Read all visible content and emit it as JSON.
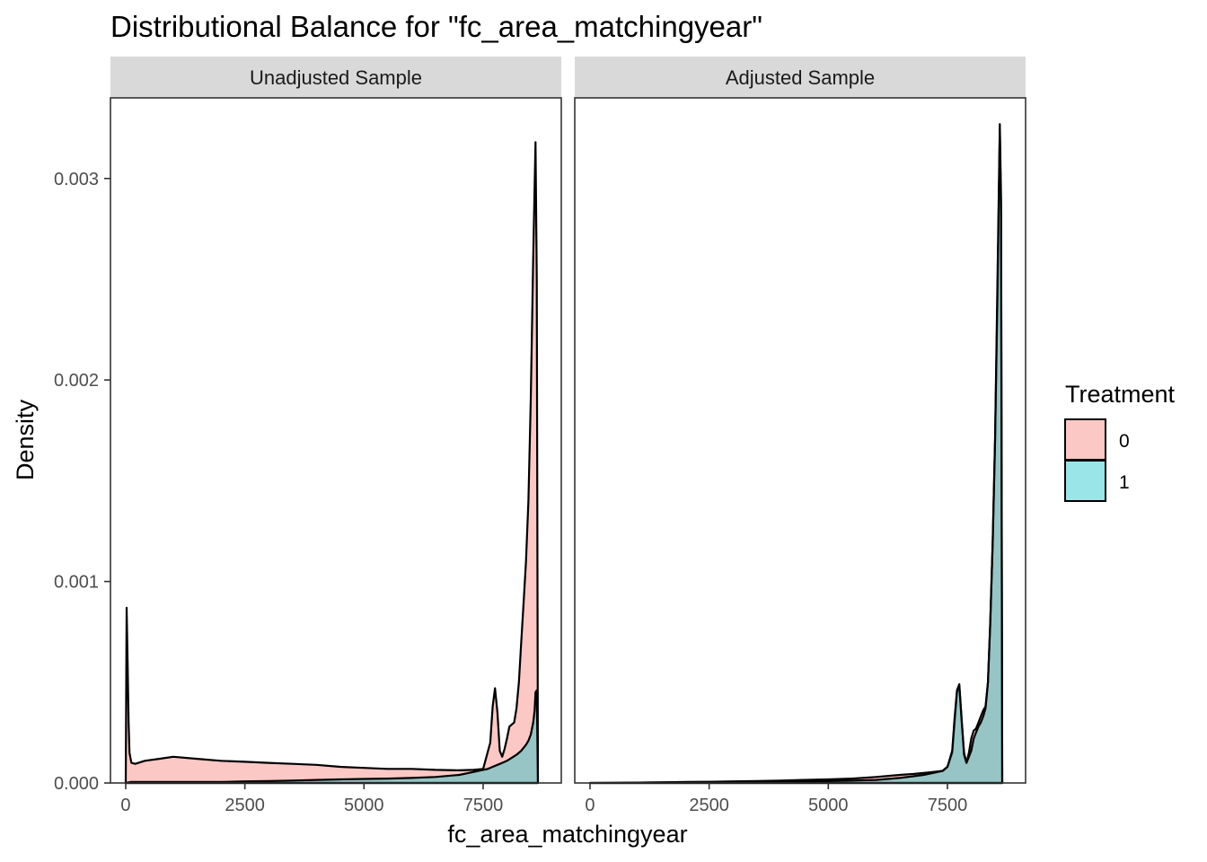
{
  "chart_data": {
    "type": "area",
    "title": "Distributional Balance for \"fc_area_matchingyear\"",
    "xlabel": "fc_area_matchingyear",
    "ylabel": "Density",
    "xlim": [
      -320,
      9140
    ],
    "ylim": [
      0,
      0.0034
    ],
    "x_ticks": [
      0,
      2500,
      5000,
      7500
    ],
    "x_tick_labels": [
      "0",
      "2500",
      "5000",
      "7500"
    ],
    "y_ticks": [
      0,
      0.001,
      0.002,
      0.003
    ],
    "y_tick_labels": [
      "0.000",
      "0.001",
      "0.002",
      "0.003"
    ],
    "legend": {
      "title": "Treatment",
      "position": "right",
      "entries": [
        {
          "label": "0",
          "color": "#F8766D"
        },
        {
          "label": "1",
          "color": "#00BFC4"
        }
      ]
    },
    "panels": [
      {
        "label": "Unadjusted Sample",
        "series": [
          {
            "name": "0",
            "color": "#F8766D",
            "x": [
              0,
              20,
              40,
              60,
              80,
              120,
              200,
              400,
              700,
              1000,
              1500,
              2000,
              2500,
              3000,
              3500,
              4000,
              4500,
              5000,
              5500,
              6000,
              6500,
              7000,
              7300,
              7500,
              7650,
              7700,
              7750,
              7800,
              7850,
              7900,
              7950,
              8000,
              8050,
              8100,
              8150,
              8200,
              8250,
              8300,
              8350,
              8400,
              8450,
              8500,
              8550,
              8600,
              8625,
              8650
            ],
            "y": [
              0.0,
              0.00087,
              0.0006,
              0.0003,
              0.00015,
              0.0001,
              9.5e-05,
              0.00011,
              0.00012,
              0.00013,
              0.00012,
              0.00011,
              0.000105,
              0.0001,
              9.5e-05,
              9e-05,
              8e-05,
              7.5e-05,
              7e-05,
              7e-05,
              6.5e-05,
              6.3e-05,
              6.5e-05,
              7e-05,
              0.0002,
              0.00038,
              0.00047,
              0.00035,
              0.00016,
              0.00013,
              0.00017,
              0.00022,
              0.00028,
              0.00029,
              0.0003,
              0.00037,
              0.0005,
              0.0007,
              0.0009,
              0.0011,
              0.0014,
              0.0019,
              0.0026,
              0.00318,
              0.0025,
              0.0
            ]
          },
          {
            "name": "1",
            "color": "#00BFC4",
            "x": [
              0,
              100,
              500,
              1000,
              1500,
              2000,
              2500,
              3000,
              3500,
              4000,
              4500,
              5000,
              5500,
              6000,
              6500,
              7000,
              7200,
              7400,
              7600,
              7700,
              7800,
              7900,
              8000,
              8100,
              8200,
              8300,
              8400,
              8450,
              8500,
              8550,
              8580,
              8600,
              8625,
              8650
            ],
            "y": [
              0.0,
              5e-06,
              5e-06,
              5e-06,
              5e-06,
              5e-06,
              8e-06,
              1e-05,
              1.2e-05,
              1.5e-05,
              1.8e-05,
              2e-05,
              2.2e-05,
              2.5e-05,
              3e-05,
              4e-05,
              5e-05,
              6e-05,
              7e-05,
              8e-05,
              9e-05,
              0.0001,
              0.00011,
              0.000125,
              0.00014,
              0.00016,
              0.00019,
              0.00021,
              0.00024,
              0.0003,
              0.00036,
              0.00045,
              0.00046,
              0.0
            ]
          }
        ]
      },
      {
        "label": "Adjusted Sample",
        "series": [
          {
            "name": "0",
            "color": "#F8766D",
            "x": [
              0,
              500,
              1000,
              1500,
              2000,
              2500,
              3000,
              3500,
              4000,
              4500,
              5000,
              5500,
              6000,
              6500,
              6800,
              7000,
              7200,
              7400,
              7500,
              7600,
              7650,
              7700,
              7750,
              7800,
              7850,
              7900,
              7950,
              8000,
              8050,
              8100,
              8150,
              8200,
              8250,
              8300,
              8350,
              8400,
              8450,
              8500,
              8550,
              8600,
              8625,
              8650
            ],
            "y": [
              0.0,
              1e-06,
              2e-06,
              3e-06,
              5e-06,
              6e-06,
              8e-06,
              1e-05,
              1.2e-05,
              1.5e-05,
              1.8e-05,
              2.2e-05,
              3e-05,
              4e-05,
              4.5e-05,
              5e-05,
              5.5e-05,
              6e-05,
              8e-05,
              0.00015,
              0.0003,
              0.00045,
              0.00048,
              0.0003,
              0.00015,
              0.0001,
              0.00015,
              0.00022,
              0.00026,
              0.00027,
              0.0003,
              0.00033,
              0.00036,
              0.00038,
              0.0005,
              0.0008,
              0.0012,
              0.0017,
              0.0024,
              0.00325,
              0.0028,
              0.0
            ]
          },
          {
            "name": "1",
            "color": "#00BFC4",
            "x": [
              0,
              500,
              1000,
              2000,
              3000,
              4000,
              5000,
              5500,
              6000,
              6500,
              7000,
              7200,
              7400,
              7500,
              7600,
              7650,
              7700,
              7750,
              7800,
              7850,
              7900,
              7950,
              8000,
              8050,
              8100,
              8150,
              8200,
              8250,
              8300,
              8350,
              8400,
              8450,
              8500,
              8550,
              8600,
              8625,
              8650
            ],
            "y": [
              0.0,
              1e-06,
              2e-06,
              4e-06,
              6e-06,
              8e-06,
              1e-05,
              1.2e-05,
              1.5e-05,
              2.5e-05,
              4e-05,
              5e-05,
              6e-05,
              8e-05,
              0.00016,
              0.00032,
              0.00046,
              0.00049,
              0.00031,
              0.00014,
              0.0001,
              0.00013,
              0.00016,
              0.00022,
              0.00025,
              0.00028,
              0.0003,
              0.00033,
              0.00037,
              0.0005,
              0.0008,
              0.0012,
              0.0017,
              0.0025,
              0.00327,
              0.0029,
              0.0
            ]
          }
        ]
      }
    ]
  }
}
